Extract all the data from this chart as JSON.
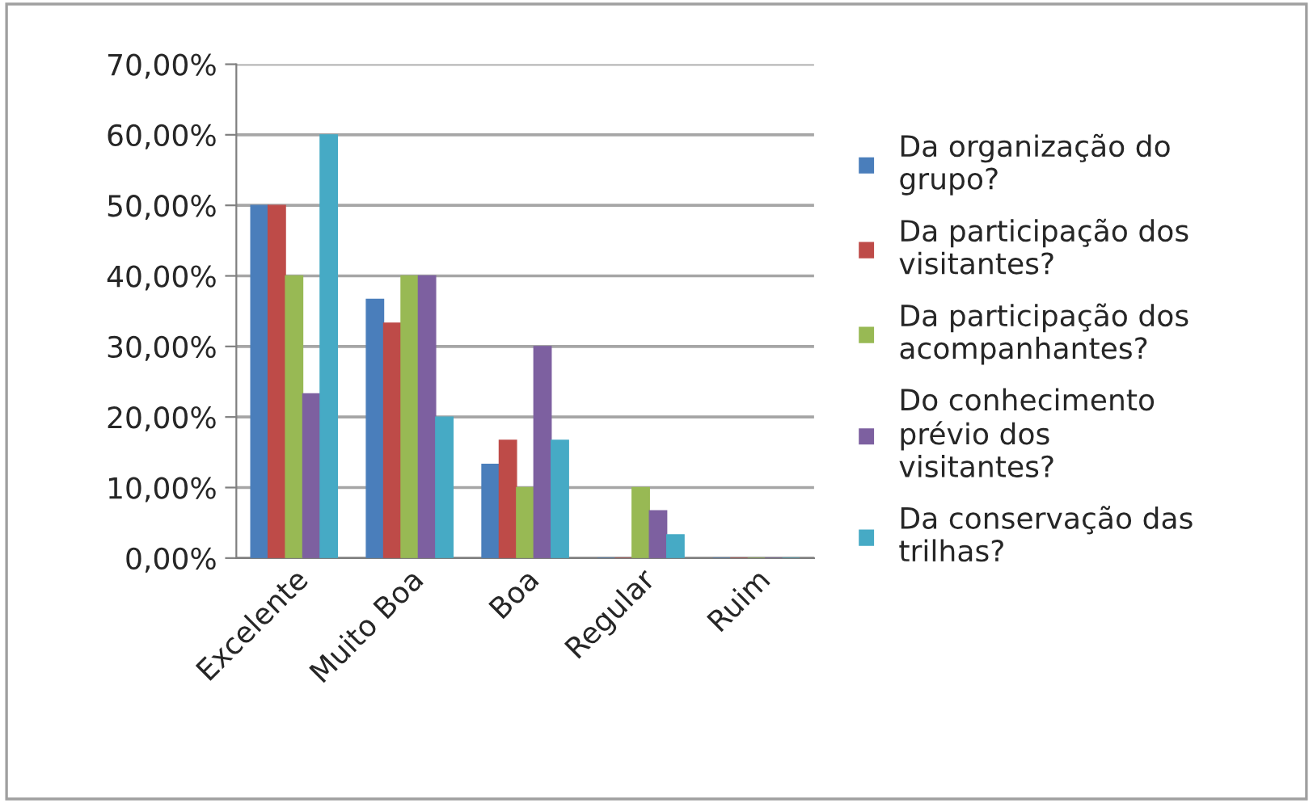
{
  "chart_data": {
    "type": "bar",
    "categories": [
      "Excelente",
      "Muito Boa",
      "Boa",
      "Regular",
      "Ruim"
    ],
    "series": [
      {
        "name": "Da organização do grupo?",
        "color": "#4a7ebb",
        "values": [
          50,
          36.7,
          13.3,
          0,
          0
        ]
      },
      {
        "name": "Da participação dos visitantes?",
        "color": "#be4b48",
        "values": [
          50,
          33.3,
          16.7,
          0,
          0
        ]
      },
      {
        "name": "Da participação dos acompanhantes?",
        "color": "#98b954",
        "values": [
          40,
          40,
          10,
          10,
          0
        ]
      },
      {
        "name": "Do conhecimento prévio dos visitantes?",
        "color": "#7d60a0",
        "values": [
          23.3,
          40,
          30,
          6.7,
          0
        ]
      },
      {
        "name": "Da conservação das trilhas?",
        "color": "#46aac5",
        "values": [
          60,
          20,
          16.7,
          3.3,
          0
        ]
      }
    ],
    "ylim": [
      0,
      70
    ],
    "yticks": [
      {
        "value": 0,
        "label": "0,00%"
      },
      {
        "value": 10,
        "label": "10,00%"
      },
      {
        "value": 20,
        "label": "20,00%"
      },
      {
        "value": 30,
        "label": "30,00%"
      },
      {
        "value": 40,
        "label": "40,00%"
      },
      {
        "value": 50,
        "label": "50,00%"
      },
      {
        "value": 60,
        "label": "60,00%"
      },
      {
        "value": 70,
        "label": "70,00%"
      }
    ],
    "grid": "y",
    "legend": "right"
  }
}
